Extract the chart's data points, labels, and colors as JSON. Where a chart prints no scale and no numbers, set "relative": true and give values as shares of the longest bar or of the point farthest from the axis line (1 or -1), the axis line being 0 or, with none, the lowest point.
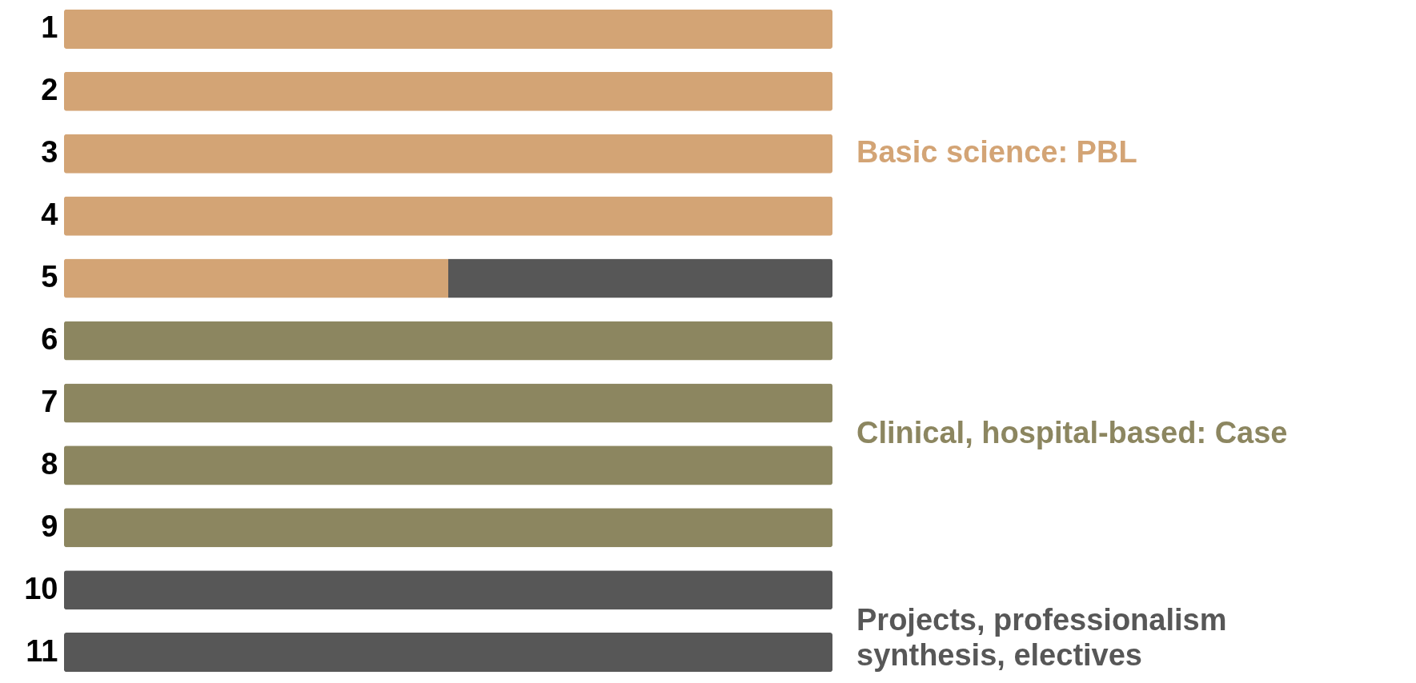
{
  "chart_data": {
    "type": "bar",
    "orientation": "horizontal",
    "stacked": true,
    "relative": true,
    "categories": [
      "1",
      "2",
      "3",
      "4",
      "5",
      "6",
      "7",
      "8",
      "9",
      "10",
      "11"
    ],
    "series": [
      {
        "name": "Basic science: PBL",
        "color": "#d3a475",
        "values": [
          1,
          1,
          1,
          1,
          0.5,
          null,
          null,
          null,
          null,
          null,
          null
        ]
      },
      {
        "name": "Clinical, hospital-based: Case",
        "color": "#8c8660",
        "values": [
          null,
          null,
          null,
          null,
          null,
          1,
          1,
          1,
          1,
          null,
          null
        ]
      },
      {
        "name": "Projects, professionalism synthesis, electives",
        "color": "#575757",
        "values": [
          null,
          null,
          null,
          null,
          0.5,
          null,
          null,
          null,
          null,
          1,
          1
        ]
      }
    ]
  }
}
